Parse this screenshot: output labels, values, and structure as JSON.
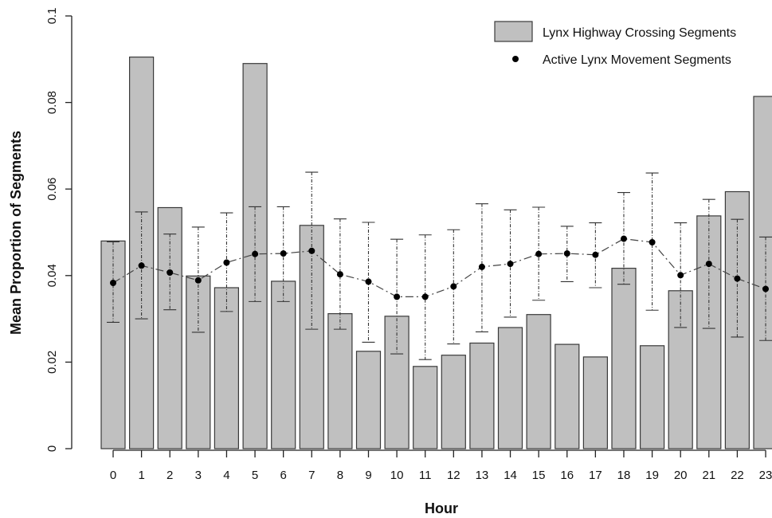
{
  "chart_data": {
    "type": "bar",
    "xlabel": "Hour",
    "ylabel": "Mean Proportion of Segments",
    "ylim": [
      0,
      0.1
    ],
    "yticks": [
      0,
      0.02,
      0.04,
      0.06,
      0.08,
      0.1
    ],
    "ytick_labels": [
      "0",
      "0.02",
      "0.04",
      "0.06",
      "0.08",
      "0.1"
    ],
    "categories": [
      "0",
      "1",
      "2",
      "3",
      "4",
      "5",
      "6",
      "7",
      "8",
      "9",
      "10",
      "11",
      "12",
      "13",
      "14",
      "15",
      "16",
      "17",
      "18",
      "19",
      "20",
      "21",
      "22",
      "23"
    ],
    "legend_position": "top-right",
    "series": [
      {
        "name": "Lynx Highway Crossing Segments",
        "kind": "bar",
        "color": "#c0c0c0",
        "values": [
          0.048,
          0.0905,
          0.0557,
          0.0399,
          0.0372,
          0.089,
          0.0387,
          0.0516,
          0.0312,
          0.0225,
          0.0306,
          0.019,
          0.0216,
          0.0244,
          0.028,
          0.031,
          0.0241,
          0.0212,
          0.0417,
          0.0238,
          0.0365,
          0.0538,
          0.0594,
          0.0814
        ]
      },
      {
        "name": "Active Lynx Movement Segments",
        "kind": "line",
        "color": "#000000",
        "values": [
          0.0383,
          0.0423,
          0.0407,
          0.0389,
          0.043,
          0.045,
          0.0451,
          0.0457,
          0.0403,
          0.0386,
          0.0351,
          0.0351,
          0.0375,
          0.042,
          0.0427,
          0.045,
          0.0451,
          0.0448,
          0.0485,
          0.0477,
          0.0401,
          0.0427,
          0.0393,
          0.0369
        ],
        "error_low": [
          0.0292,
          0.03,
          0.0321,
          0.0269,
          0.0317,
          0.034,
          0.034,
          0.0276,
          0.0276,
          0.0246,
          0.0219,
          0.0206,
          0.0242,
          0.027,
          0.0304,
          0.0343,
          0.0386,
          0.0372,
          0.038,
          0.032,
          0.028,
          0.0278,
          0.0258,
          0.025
        ],
        "error_high": [
          0.0478,
          0.0547,
          0.0496,
          0.0512,
          0.0545,
          0.0559,
          0.0559,
          0.0639,
          0.0531,
          0.0523,
          0.0484,
          0.0494,
          0.0506,
          0.0566,
          0.0552,
          0.0558,
          0.0514,
          0.0522,
          0.0592,
          0.0637,
          0.0522,
          0.0576,
          0.053,
          0.0489
        ]
      }
    ]
  }
}
